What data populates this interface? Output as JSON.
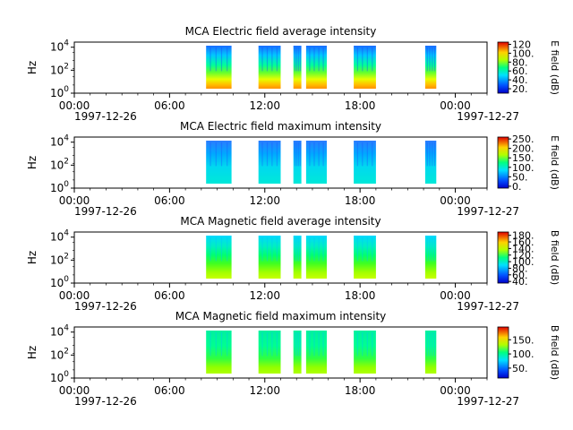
{
  "chart_data": [
    {
      "type": "heatmap",
      "title": "MCA  Electric field average intensity",
      "ylabel": "Hz",
      "colorbar_label": "E field (dB)",
      "colorbar_ticks": [
        "20.",
        "40.",
        "60.",
        "80.",
        "100.",
        "120"
      ],
      "colorbar_range": [
        10,
        125
      ],
      "yticks": [
        {
          "base": "10",
          "exp": "0"
        },
        {
          "base": "10",
          "exp": "2"
        },
        {
          "base": "10",
          "exp": "4"
        }
      ],
      "xticks": [
        "00:00",
        "06:00",
        "12:00",
        "18:00",
        "00:00"
      ],
      "x_start_date": "1997-12-26",
      "x_end_date": "1997-12-27",
      "data_blocks_hours": [
        [
          8.3,
          9.9
        ],
        [
          11.6,
          13.0
        ],
        [
          13.8,
          14.3
        ],
        [
          14.6,
          15.9
        ],
        [
          17.6,
          19.0
        ],
        [
          22.1,
          22.8
        ]
      ]
    },
    {
      "type": "heatmap",
      "title": "MCA  Electric field maximum intensity",
      "ylabel": "Hz",
      "colorbar_label": "E field (dB)",
      "colorbar_ticks": [
        "0.",
        "50.",
        "100.",
        "150.",
        "200.",
        "250."
      ],
      "colorbar_range": [
        -10,
        260
      ],
      "yticks": [
        {
          "base": "10",
          "exp": "0"
        },
        {
          "base": "10",
          "exp": "2"
        },
        {
          "base": "10",
          "exp": "4"
        }
      ],
      "xticks": [
        "00:00",
        "06:00",
        "12:00",
        "18:00",
        "00:00"
      ],
      "x_start_date": "1997-12-26",
      "x_end_date": "1997-12-27",
      "data_blocks_hours": [
        [
          8.3,
          9.9
        ],
        [
          11.6,
          13.0
        ],
        [
          13.8,
          14.3
        ],
        [
          14.6,
          15.9
        ],
        [
          17.6,
          19.0
        ],
        [
          22.1,
          22.8
        ]
      ]
    },
    {
      "type": "heatmap",
      "title": "MCA  Magnetic field average intensity",
      "ylabel": "Hz",
      "colorbar_label": "B field (dB)",
      "colorbar_ticks": [
        "40.",
        "60.",
        "80.",
        "100.",
        "120.",
        "140.",
        "160.",
        "180."
      ],
      "colorbar_range": [
        35,
        190
      ],
      "yticks": [
        {
          "base": "10",
          "exp": "0"
        },
        {
          "base": "10",
          "exp": "2"
        },
        {
          "base": "10",
          "exp": "4"
        }
      ],
      "xticks": [
        "00:00",
        "06:00",
        "12:00",
        "18:00",
        "00:00"
      ],
      "x_start_date": "1997-12-26",
      "x_end_date": "1997-12-27",
      "data_blocks_hours": [
        [
          8.3,
          9.9
        ],
        [
          11.6,
          13.0
        ],
        [
          13.8,
          14.3
        ],
        [
          14.6,
          15.9
        ],
        [
          17.6,
          19.0
        ],
        [
          22.1,
          22.8
        ]
      ]
    },
    {
      "type": "heatmap",
      "title": "MCA  Magnetic field maximum intensity",
      "ylabel": "Hz",
      "colorbar_label": "B field (dB)",
      "colorbar_ticks": [
        "50.",
        "100.",
        "150."
      ],
      "colorbar_range": [
        15,
        195
      ],
      "yticks": [
        {
          "base": "10",
          "exp": "0"
        },
        {
          "base": "10",
          "exp": "2"
        },
        {
          "base": "10",
          "exp": "4"
        }
      ],
      "xticks": [
        "00:00",
        "06:00",
        "12:00",
        "18:00",
        "00:00"
      ],
      "x_start_date": "1997-12-26",
      "x_end_date": "1997-12-27",
      "data_blocks_hours": [
        [
          8.3,
          9.9
        ],
        [
          11.6,
          13.0
        ],
        [
          13.8,
          14.3
        ],
        [
          14.6,
          15.9
        ],
        [
          17.6,
          19.0
        ],
        [
          22.1,
          22.8
        ]
      ]
    }
  ]
}
